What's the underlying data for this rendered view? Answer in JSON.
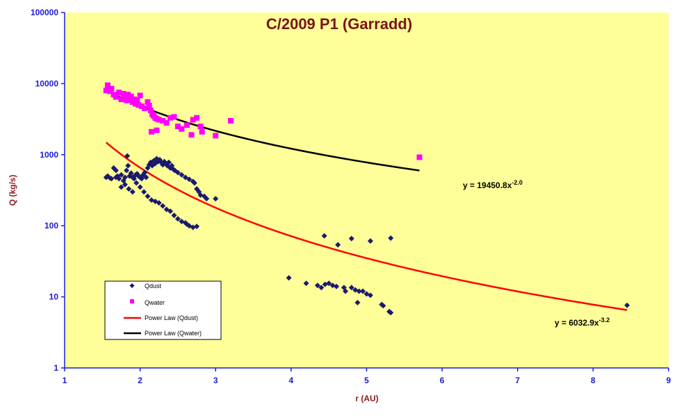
{
  "chart_data": {
    "type": "scatter",
    "title": "C/2009 P1 (Garradd)",
    "xlabel": "r (AU)",
    "ylabel": "Q (kg/s)",
    "xlim": [
      1,
      9
    ],
    "ylim": [
      1,
      100000
    ],
    "yscale": "log",
    "x_ticks": [
      "1",
      "2",
      "3",
      "4",
      "5",
      "6",
      "7",
      "8",
      "9"
    ],
    "y_ticks": [
      "1",
      "10",
      "100",
      "1000",
      "10000",
      "100000"
    ],
    "grid": false,
    "legend_position": "bottom-left",
    "colors": {
      "plot_background": "#ffff99",
      "qdust": "#1a1a6e",
      "qwater": "#ff00ff",
      "fit_dust": "#ff0000",
      "fit_water": "#000000",
      "axis": "#1a1adc",
      "title": "#7a1414"
    },
    "series": [
      {
        "name": "Qdust",
        "kind": "scatter",
        "marker": "diamond",
        "points": [
          [
            1.55,
            480
          ],
          [
            1.57,
            500
          ],
          [
            1.6,
            470
          ],
          [
            1.62,
            460
          ],
          [
            1.65,
            650
          ],
          [
            1.68,
            480
          ],
          [
            1.7,
            500
          ],
          [
            1.72,
            460
          ],
          [
            1.75,
            520
          ],
          [
            1.78,
            430
          ],
          [
            1.8,
            480
          ],
          [
            1.82,
            600
          ],
          [
            1.84,
            700
          ],
          [
            1.86,
            500
          ],
          [
            1.88,
            550
          ],
          [
            1.9,
            480
          ],
          [
            1.92,
            460
          ],
          [
            1.94,
            520
          ],
          [
            1.96,
            540
          ],
          [
            1.98,
            500
          ],
          [
            2.0,
            480
          ],
          [
            2.02,
            460
          ],
          [
            2.04,
            520
          ],
          [
            2.06,
            560
          ],
          [
            2.08,
            480
          ],
          [
            2.1,
            650
          ],
          [
            2.12,
            720
          ],
          [
            2.14,
            780
          ],
          [
            2.16,
            700
          ],
          [
            2.18,
            820
          ],
          [
            2.2,
            750
          ],
          [
            2.22,
            880
          ],
          [
            2.24,
            800
          ],
          [
            2.26,
            850
          ],
          [
            2.28,
            780
          ],
          [
            2.3,
            720
          ],
          [
            2.32,
            800
          ],
          [
            2.34,
            760
          ],
          [
            2.36,
            700
          ],
          [
            2.38,
            780
          ],
          [
            2.4,
            650
          ],
          [
            2.42,
            700
          ],
          [
            2.44,
            620
          ],
          [
            2.46,
            600
          ],
          [
            2.5,
            560
          ],
          [
            2.55,
            520
          ],
          [
            2.6,
            480
          ],
          [
            2.65,
            450
          ],
          [
            2.7,
            420
          ],
          [
            2.72,
            400
          ],
          [
            2.75,
            330
          ],
          [
            2.78,
            300
          ],
          [
            2.8,
            270
          ],
          [
            2.85,
            260
          ],
          [
            2.88,
            240
          ],
          [
            3.0,
            240
          ],
          [
            1.75,
            350
          ],
          [
            1.8,
            380
          ],
          [
            1.85,
            330
          ],
          [
            1.9,
            300
          ],
          [
            1.95,
            400
          ],
          [
            2.0,
            350
          ],
          [
            2.05,
            300
          ],
          [
            2.1,
            260
          ],
          [
            2.15,
            230
          ],
          [
            2.2,
            220
          ],
          [
            2.25,
            210
          ],
          [
            2.3,
            190
          ],
          [
            2.35,
            170
          ],
          [
            2.4,
            160
          ],
          [
            2.45,
            140
          ],
          [
            2.5,
            125
          ],
          [
            2.55,
            115
          ],
          [
            2.6,
            110
          ],
          [
            2.62,
            105
          ],
          [
            2.65,
            100
          ],
          [
            2.7,
            95
          ],
          [
            2.75,
            98
          ],
          [
            1.68,
            600
          ],
          [
            1.83,
            960
          ],
          [
            3.97,
            18.5
          ],
          [
            4.2,
            15.5
          ],
          [
            4.35,
            14.5
          ],
          [
            4.4,
            13.5
          ],
          [
            4.45,
            15
          ],
          [
            4.5,
            15.5
          ],
          [
            4.55,
            14.5
          ],
          [
            4.6,
            14
          ],
          [
            4.7,
            13.5
          ],
          [
            4.72,
            12
          ],
          [
            4.8,
            13.5
          ],
          [
            4.85,
            12.5
          ],
          [
            4.9,
            12
          ],
          [
            4.95,
            12
          ],
          [
            5.0,
            11
          ],
          [
            5.05,
            10.5
          ],
          [
            4.88,
            8.3
          ],
          [
            5.2,
            7.8
          ],
          [
            5.22,
            7.5
          ],
          [
            5.3,
            6.2
          ],
          [
            5.32,
            6
          ],
          [
            4.44,
            72
          ],
          [
            4.62,
            54
          ],
          [
            4.8,
            66
          ],
          [
            5.05,
            61
          ],
          [
            5.32,
            67
          ],
          [
            8.45,
            7.6
          ]
        ]
      },
      {
        "name": "Qwater",
        "kind": "scatter",
        "marker": "square",
        "points": [
          [
            1.55,
            8000
          ],
          [
            1.57,
            9500
          ],
          [
            1.6,
            7800
          ],
          [
            1.62,
            8500
          ],
          [
            1.65,
            7000
          ],
          [
            1.68,
            6500
          ],
          [
            1.72,
            7500
          ],
          [
            1.75,
            6000
          ],
          [
            1.78,
            7200
          ],
          [
            1.8,
            6800
          ],
          [
            1.82,
            5800
          ],
          [
            1.84,
            7000
          ],
          [
            1.86,
            6200
          ],
          [
            1.88,
            6600
          ],
          [
            1.9,
            5500
          ],
          [
            1.92,
            6000
          ],
          [
            1.94,
            5200
          ],
          [
            1.96,
            5800
          ],
          [
            1.98,
            5000
          ],
          [
            2.0,
            6800
          ],
          [
            2.02,
            4800
          ],
          [
            2.06,
            4500
          ],
          [
            2.1,
            5500
          ],
          [
            2.12,
            4900
          ],
          [
            2.14,
            4200
          ],
          [
            2.16,
            3700
          ],
          [
            2.18,
            3500
          ],
          [
            2.2,
            3300
          ],
          [
            2.22,
            3200
          ],
          [
            2.25,
            3100
          ],
          [
            2.3,
            3000
          ],
          [
            2.35,
            2800
          ],
          [
            2.4,
            3300
          ],
          [
            2.45,
            3400
          ],
          [
            2.5,
            2500
          ],
          [
            2.55,
            2300
          ],
          [
            2.62,
            2600
          ],
          [
            2.7,
            3100
          ],
          [
            2.75,
            3300
          ],
          [
            2.8,
            2500
          ],
          [
            2.82,
            2100
          ],
          [
            2.15,
            2100
          ],
          [
            2.22,
            2200
          ],
          [
            2.68,
            1900
          ],
          [
            3.0,
            1850
          ],
          [
            3.2,
            3000
          ],
          [
            5.7,
            920
          ]
        ]
      },
      {
        "name": "Power Law (Qdust)",
        "kind": "line",
        "equation": "y = 6032.9x",
        "exponent": "-3.2",
        "coefficient": 6032.9,
        "power": -3.2,
        "x_range": [
          1.55,
          8.45
        ]
      },
      {
        "name": "Power Law (Qwater)",
        "kind": "line",
        "equation": "y = 19450.8x",
        "exponent": "-2.0",
        "coefficient": 19450.8,
        "power": -2.0,
        "x_range": [
          1.55,
          5.7
        ]
      }
    ]
  }
}
